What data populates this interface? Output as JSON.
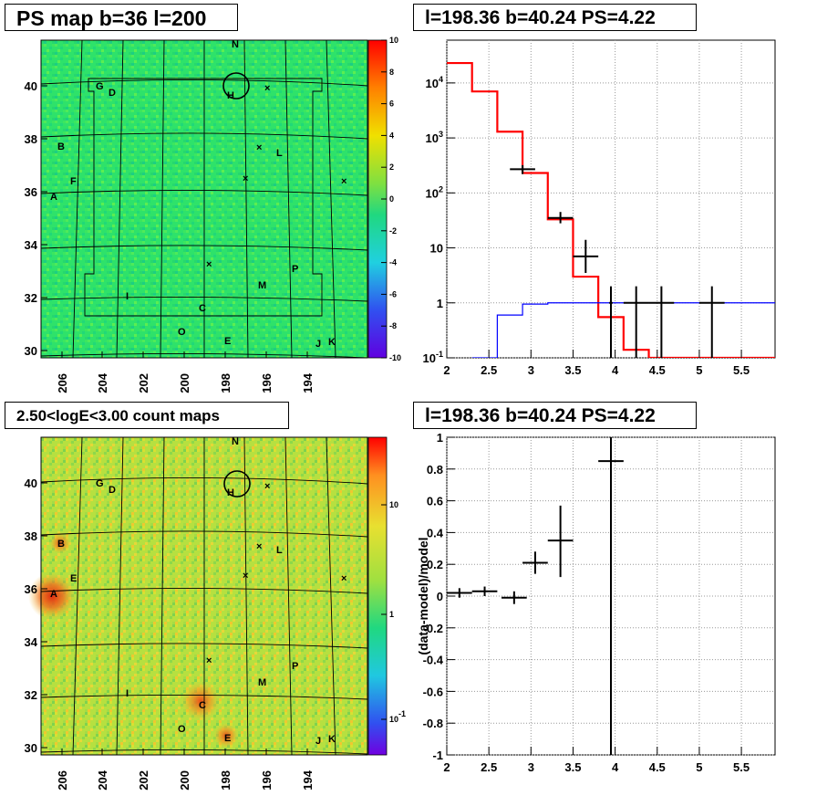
{
  "panels": {
    "tl_title": "PS map b=36 l=200",
    "tr_title": "l=198.36 b=40.24 PS=4.22",
    "bl_title": "2.50<logE<3.00 count maps",
    "br_title": "l=198.36 b=40.24 PS=4.22"
  },
  "colors": {
    "map_top_bg": "#2ee26a",
    "map_bottom_bg": "#b6e040",
    "hot_spot": "#e83a10",
    "model_red": "#ff0000",
    "model_blue": "#0000ff"
  },
  "chart_data": [
    {
      "type": "heatmap",
      "name": "PS map",
      "x_ticks": [
        "206",
        "204",
        "202",
        "200",
        "198",
        "196",
        "194"
      ],
      "y_ticks": [
        "40",
        "38",
        "36",
        "34",
        "32",
        "30"
      ],
      "colorbar_ticks": [
        "10",
        "8",
        "6",
        "4",
        "2",
        "0",
        "-2",
        "-4",
        "-6",
        "-8",
        "-10"
      ],
      "colorbar_range": [
        -10,
        10
      ],
      "sources": [
        "N",
        "G",
        "D",
        "B",
        "F",
        "A",
        "L",
        "P",
        "M",
        "I",
        "C",
        "O",
        "E",
        "J",
        "K",
        "H"
      ]
    },
    {
      "type": "line",
      "name": "spectrum",
      "x_ticks": [
        "2",
        "2.5",
        "3",
        "3.5",
        "4",
        "4.5",
        "5",
        "5.5"
      ],
      "xlim": [
        2,
        5.9
      ],
      "y_scale": "log",
      "y_ticks": [
        "10^4",
        "10^3",
        "10^2",
        "10",
        "1",
        "10^-1"
      ],
      "ylim": [
        0.1,
        60000
      ],
      "grid": true,
      "series": [
        {
          "color": "#ff0000",
          "edges": [
            2.0,
            2.3,
            2.6,
            2.9,
            3.2,
            3.5,
            3.8,
            4.1,
            4.4,
            5.9
          ],
          "values": [
            23000,
            7000,
            1300,
            230,
            33,
            3.0,
            0.55,
            0.14,
            0.1
          ]
        },
        {
          "color": "#0000ff",
          "edges": [
            2.3,
            2.6,
            2.9,
            3.2,
            3.5,
            3.8,
            4.1,
            4.4,
            5.9
          ],
          "values": [
            0.1,
            0.6,
            0.95,
            1.0,
            1.0,
            1.0,
            1.0,
            1.0
          ]
        },
        {
          "type": "errorbar",
          "color": "#000000",
          "x": [
            2.9,
            3.35,
            3.65,
            3.95,
            4.25,
            4.55,
            5.15
          ],
          "xerr": [
            0.15,
            0.15,
            0.15,
            0.02,
            0.15,
            0.15,
            0.15
          ],
          "y": [
            270,
            35,
            7,
            1.0,
            1.0,
            1.0,
            1.0
          ],
          "ylo": [
            220,
            28,
            3.5,
            0.1,
            0.1,
            0.1,
            0.1
          ],
          "yhi": [
            320,
            45,
            14,
            2,
            2,
            2,
            2
          ]
        }
      ]
    },
    {
      "type": "heatmap",
      "name": "count maps",
      "x_ticks": [
        "206",
        "204",
        "202",
        "200",
        "198",
        "196",
        "194"
      ],
      "y_ticks": [
        "40",
        "38",
        "36",
        "34",
        "32",
        "30"
      ],
      "colorbar_ticks": [
        "10",
        "1",
        "10^-1"
      ],
      "colorbar_scale": "log",
      "sources": [
        "N",
        "G",
        "D",
        "B",
        "E",
        "A",
        "L",
        "P",
        "M",
        "I",
        "C",
        "O",
        "E",
        "J",
        "K",
        "H"
      ]
    },
    {
      "type": "scatter",
      "name": "residuals",
      "ylabel": "(data-model)/model",
      "x_ticks": [
        "2",
        "2.5",
        "3",
        "3.5",
        "4",
        "4.5",
        "5",
        "5.5"
      ],
      "xlim": [
        2,
        5.9
      ],
      "y_ticks": [
        "1",
        "0.8",
        "0.6",
        "0.4",
        "0.2",
        "0",
        "-0.2",
        "-0.4",
        "-0.6",
        "-0.8",
        "-1"
      ],
      "ylim": [
        -1,
        1
      ],
      "grid": true,
      "series": [
        {
          "type": "errorbar",
          "color": "#000000",
          "x": [
            2.15,
            2.45,
            2.8,
            3.05,
            3.35,
            3.95
          ],
          "xerr": [
            0.15,
            0.15,
            0.15,
            0.15,
            0.15,
            0.15
          ],
          "y": [
            0.02,
            0.03,
            -0.01,
            0.21,
            0.35,
            0.85
          ],
          "ylo": [
            -0.01,
            0.0,
            -0.05,
            0.14,
            0.12,
            -1.0
          ],
          "yhi": [
            0.05,
            0.06,
            0.03,
            0.28,
            0.57,
            1.0
          ]
        }
      ]
    }
  ]
}
